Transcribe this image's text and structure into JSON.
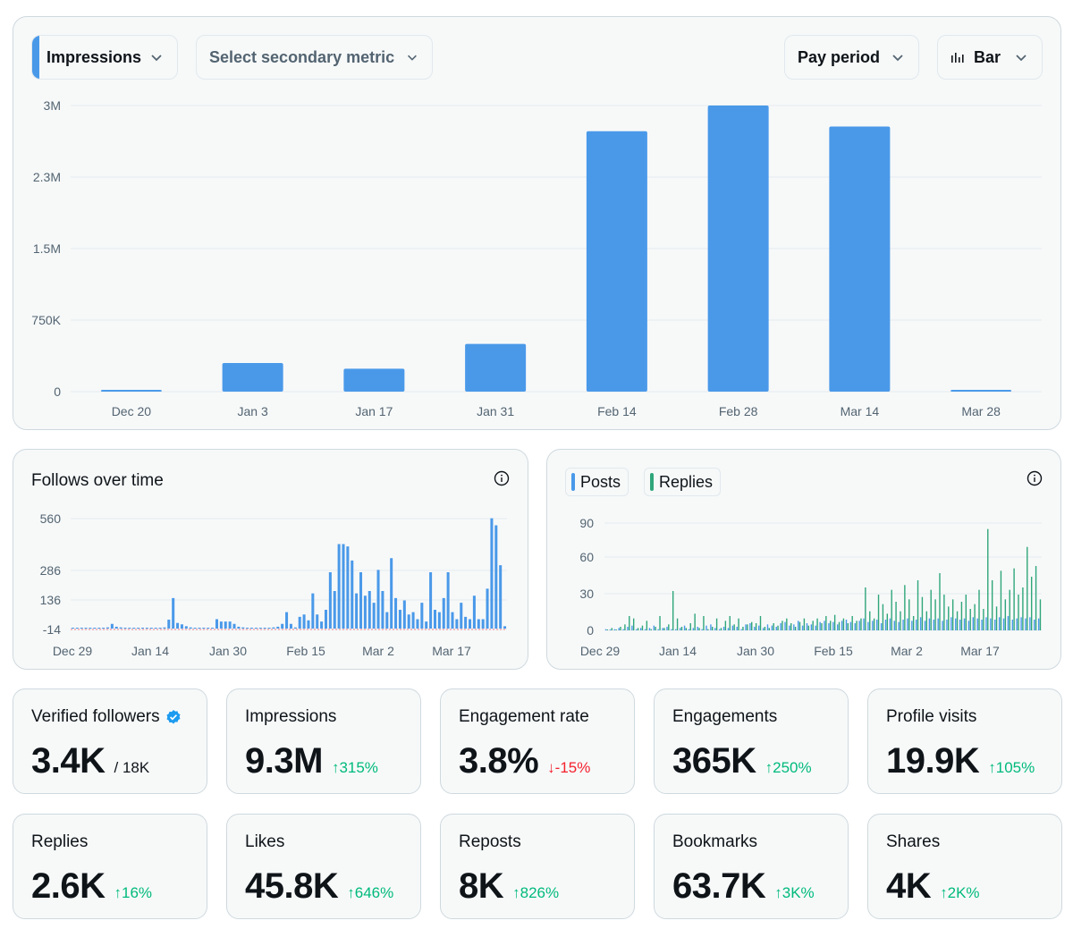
{
  "controls": {
    "primary_metric": "Impressions",
    "secondary_metric_placeholder": "Select secondary metric",
    "period": "Pay period",
    "chart_type": "Bar"
  },
  "colors": {
    "accent_blue": "#4a99e9",
    "accent_green": "#2fa67a",
    "negative_red": "#f4212e",
    "positive_green": "#00ba7c"
  },
  "chart_data": [
    {
      "type": "bar",
      "categories": [
        "Dec 20",
        "Jan 3",
        "Jan 17",
        "Jan 31",
        "Feb 14",
        "Feb 28",
        "Mar 14",
        "Mar 28"
      ],
      "series": [
        {
          "values": [
            15000,
            300000,
            240000,
            500000,
            2730000,
            3000000,
            2780000,
            15000
          ]
        }
      ],
      "yticks": [
        "3M",
        "2.3M",
        "1.5M",
        "750K",
        "0"
      ],
      "ytick_values": [
        3000000,
        2250000,
        1500000,
        750000,
        0
      ],
      "ylim": [
        0,
        3000000
      ],
      "grid": true
    },
    {
      "type": "bar",
      "title": "Follows over time",
      "x_tick_labels": [
        "Dec 29",
        "Jan 14",
        "Jan 30",
        "Feb 15",
        "Mar 2",
        "Mar 17"
      ],
      "yticks": [
        "560",
        "286",
        "136",
        "-14"
      ],
      "series": [
        {
          "values": [
            0,
            0,
            0,
            0,
            0,
            0,
            0,
            0,
            5,
            20,
            8,
            5,
            0,
            0,
            0,
            0,
            0,
            0,
            0,
            0,
            0,
            5,
            38,
            130,
            24,
            18,
            10,
            5,
            0,
            0,
            0,
            0,
            0,
            40,
            30,
            30,
            30,
            20,
            8,
            5,
            0,
            0,
            0,
            0,
            0,
            0,
            5,
            8,
            20,
            70,
            20,
            5,
            50,
            60,
            35,
            150,
            60,
            30,
            80,
            240,
            160,
            360,
            360,
            350,
            290,
            150,
            240,
            140,
            160,
            110,
            250,
            160,
            70,
            300,
            130,
            80,
            120,
            60,
            70,
            40,
            110,
            30,
            240,
            80,
            70,
            130,
            240,
            70,
            40,
            110,
            50,
            40,
            140,
            40,
            40,
            170,
            470,
            440,
            270,
            10
          ]
        }
      ],
      "grid": true
    },
    {
      "type": "bar",
      "x_tick_labels": [
        "Dec 29",
        "Jan 14",
        "Jan 30",
        "Feb 15",
        "Mar 2",
        "Mar 17"
      ],
      "yticks": [
        "90",
        "60",
        "30",
        "0"
      ],
      "series": [
        {
          "name": "Posts",
          "values": [
            1,
            0,
            1,
            2,
            1,
            3,
            4,
            1,
            2,
            1,
            2,
            4,
            1,
            2,
            3,
            1,
            1,
            2,
            4,
            1,
            2,
            3,
            1,
            4,
            5,
            2,
            1,
            3,
            2,
            4,
            3,
            1,
            5,
            6,
            3,
            4,
            2,
            5,
            4,
            3,
            6,
            7,
            4,
            5,
            8,
            4,
            6,
            5,
            4,
            7,
            8,
            6,
            7,
            5,
            8,
            9,
            7,
            6,
            8,
            10,
            7,
            8,
            9,
            6,
            9,
            10,
            8,
            7,
            9,
            10,
            8,
            9,
            11,
            8,
            10,
            9,
            10,
            8,
            9,
            11,
            10,
            9,
            10,
            8,
            11,
            10,
            9,
            11,
            10,
            9,
            11,
            10,
            12,
            9,
            10,
            11,
            10,
            11,
            9,
            10
          ]
        },
        {
          "name": "Replies",
          "values": [
            0,
            2,
            0,
            3,
            5,
            12,
            10,
            2,
            4,
            8,
            1,
            3,
            12,
            2,
            5,
            33,
            10,
            3,
            2,
            6,
            14,
            2,
            12,
            1,
            3,
            10,
            2,
            8,
            12,
            5,
            10,
            3,
            5,
            7,
            6,
            12,
            3,
            2,
            6,
            4,
            8,
            10,
            6,
            3,
            7,
            10,
            4,
            8,
            10,
            6,
            12,
            8,
            13,
            7,
            10,
            6,
            12,
            8,
            10,
            36,
            16,
            10,
            30,
            22,
            14,
            34,
            24,
            16,
            38,
            26,
            12,
            42,
            28,
            16,
            34,
            26,
            48,
            30,
            20,
            26,
            16,
            24,
            30,
            18,
            22,
            34,
            18,
            85,
            42,
            20,
            50,
            26,
            34,
            52,
            30,
            36,
            70,
            45,
            54,
            26
          ]
        }
      ],
      "grid": true
    }
  ],
  "stats": [
    {
      "label": "Verified followers",
      "value": "3.4K",
      "total": "/ 18K"
    },
    {
      "label": "Impressions",
      "value": "9.3M",
      "delta": "315%",
      "trend": "up"
    },
    {
      "label": "Engagement rate",
      "value": "3.8%",
      "delta": "-15%",
      "trend": "down"
    },
    {
      "label": "Engagements",
      "value": "365K",
      "delta": "250%",
      "trend": "up"
    },
    {
      "label": "Profile visits",
      "value": "19.9K",
      "delta": "105%",
      "trend": "up"
    },
    {
      "label": "Replies",
      "value": "2.6K",
      "delta": "16%",
      "trend": "up"
    },
    {
      "label": "Likes",
      "value": "45.8K",
      "delta": "646%",
      "trend": "up"
    },
    {
      "label": "Reposts",
      "value": "8K",
      "delta": "826%",
      "trend": "up"
    },
    {
      "label": "Bookmarks",
      "value": "63.7K",
      "delta": "3K%",
      "trend": "up"
    },
    {
      "label": "Shares",
      "value": "4K",
      "delta": "2K%",
      "trend": "up"
    }
  ]
}
